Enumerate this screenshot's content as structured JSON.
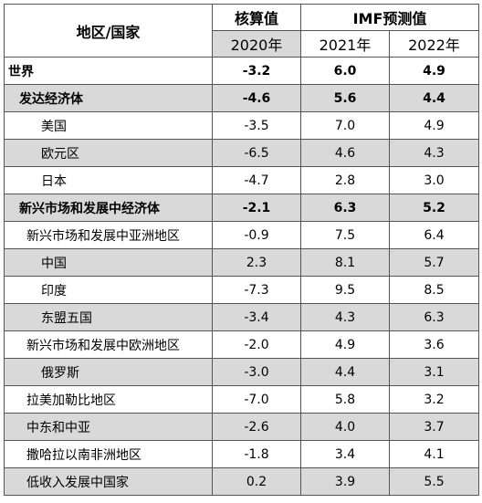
{
  "header": {
    "region_label": "地区/国家",
    "actual_label": "核算值",
    "forecast_label": "IMF预测值",
    "years": [
      "2020年",
      "2021年",
      "2022年"
    ]
  },
  "rows": [
    {
      "name": "世界",
      "v2020": "-3.2",
      "v2021": "6.0",
      "v2022": "4.9"
    },
    {
      "name": "发达经济体",
      "v2020": "-4.6",
      "v2021": "5.6",
      "v2022": "4.4"
    },
    {
      "name": "美国",
      "v2020": "-3.5",
      "v2021": "7.0",
      "v2022": "4.9"
    },
    {
      "name": "欧元区",
      "v2020": "-6.5",
      "v2021": "4.6",
      "v2022": "4.3"
    },
    {
      "name": "日本",
      "v2020": "-4.7",
      "v2021": "2.8",
      "v2022": "3.0"
    },
    {
      "name": "新兴市场和发展中经济体",
      "v2020": "-2.1",
      "v2021": "6.3",
      "v2022": "5.2"
    },
    {
      "name": "新兴市场和发展中亚洲地区",
      "v2020": "-0.9",
      "v2021": "7.5",
      "v2022": "6.4"
    },
    {
      "name": "中国",
      "v2020": "2.3",
      "v2021": "8.1",
      "v2022": "5.7"
    },
    {
      "name": "印度",
      "v2020": "-7.3",
      "v2021": "9.5",
      "v2022": "8.5"
    },
    {
      "name": "东盟五国",
      "v2020": "-3.4",
      "v2021": "4.3",
      "v2022": "6.3"
    },
    {
      "name": "新兴市场和发展中欧洲地区",
      "v2020": "-2.0",
      "v2021": "4.9",
      "v2022": "3.6"
    },
    {
      "name": "俄罗斯",
      "v2020": "-3.0",
      "v2021": "4.4",
      "v2022": "3.1"
    },
    {
      "name": "拉美加勒比地区",
      "v2020": "-7.0",
      "v2021": "5.8",
      "v2022": "3.2"
    },
    {
      "name": "中东和中亚",
      "v2020": "-2.6",
      "v2021": "4.0",
      "v2022": "3.7"
    },
    {
      "name": "撒哈拉以南非洲地区",
      "v2020": "-1.8",
      "v2021": "3.4",
      "v2022": "4.1"
    },
    {
      "name": "低收入发展中国家",
      "v2020": "0.2",
      "v2021": "3.9",
      "v2022": "5.5"
    }
  ]
}
